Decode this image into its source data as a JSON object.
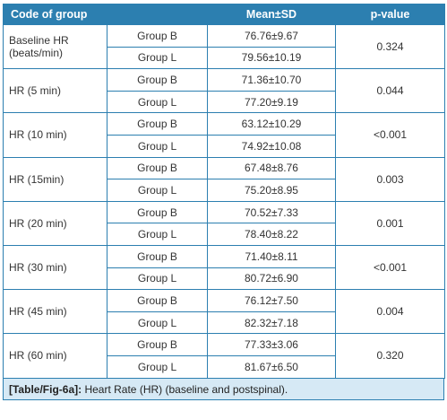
{
  "headers": {
    "col1": "Code of group",
    "col2": "Mean±SD",
    "col3": "p-value"
  },
  "rows": [
    {
      "param": "Baseline HR (beats/min)",
      "groups": [
        {
          "name": "Group B",
          "value": "76.76±9.67"
        },
        {
          "name": "Group L",
          "value": "79.56±10.19"
        }
      ],
      "p": "0.324"
    },
    {
      "param": "HR (5 min)",
      "groups": [
        {
          "name": "Group B",
          "value": "71.36±10.70"
        },
        {
          "name": "Group L",
          "value": "77.20±9.19"
        }
      ],
      "p": "0.044"
    },
    {
      "param": "HR (10 min)",
      "groups": [
        {
          "name": "Group B",
          "value": "63.12±10.29"
        },
        {
          "name": "Group L",
          "value": "74.92±10.08"
        }
      ],
      "p": "<0.001"
    },
    {
      "param": "HR (15min)",
      "groups": [
        {
          "name": "Group B",
          "value": "67.48±8.76"
        },
        {
          "name": "Group L",
          "value": "75.20±8.95"
        }
      ],
      "p": "0.003"
    },
    {
      "param": "HR (20 min)",
      "groups": [
        {
          "name": "Group B",
          "value": "70.52±7.33"
        },
        {
          "name": "Group L",
          "value": "78.40±8.22"
        }
      ],
      "p": "0.001"
    },
    {
      "param": "HR (30 min)",
      "groups": [
        {
          "name": "Group B",
          "value": "71.40±8.11"
        },
        {
          "name": "Group L",
          "value": "80.72±6.90"
        }
      ],
      "p": "<0.001"
    },
    {
      "param": "HR (45 min)",
      "groups": [
        {
          "name": "Group B",
          "value": "76.12±7.50"
        },
        {
          "name": "Group L",
          "value": "82.32±7.18"
        }
      ],
      "p": "0.004"
    },
    {
      "param": "HR (60 min)",
      "groups": [
        {
          "name": "Group B",
          "value": "77.33±3.06"
        },
        {
          "name": "Group L",
          "value": "81.67±6.50"
        }
      ],
      "p": "0.320"
    }
  ],
  "caption": {
    "label": "[Table/Fig-6a]:",
    "text": " Heart Rate (HR) (baseline and postspinal)."
  }
}
